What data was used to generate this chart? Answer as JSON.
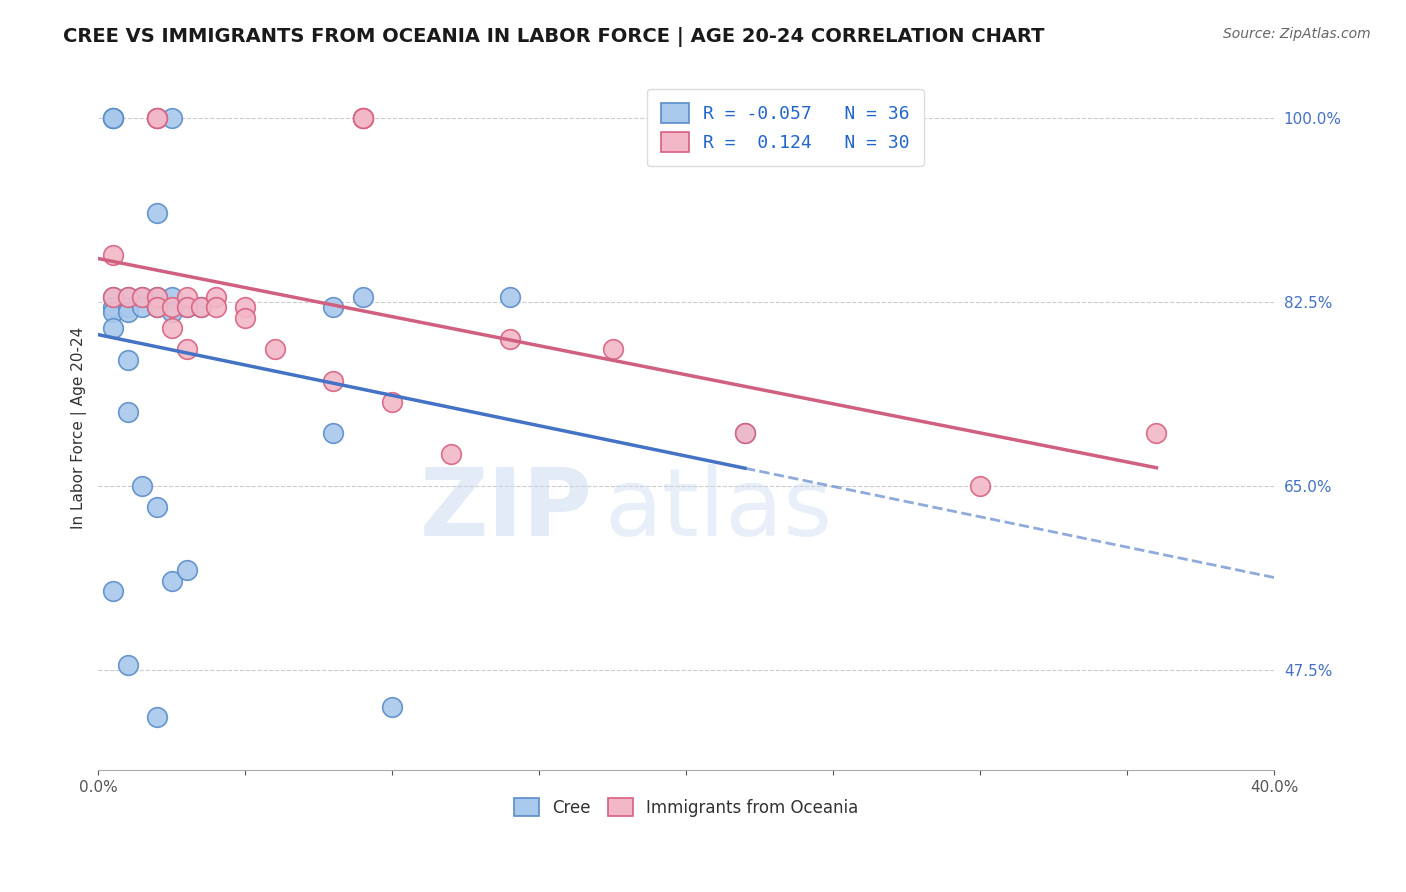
{
  "title": "CREE VS IMMIGRANTS FROM OCEANIA IN LABOR FORCE | AGE 20-24 CORRELATION CHART",
  "source": "Source: ZipAtlas.com",
  "ylabel": "In Labor Force | Age 20-24",
  "xlim": [
    0.0,
    0.4
  ],
  "ylim": [
    0.38,
    1.03
  ],
  "xticks": [
    0.0,
    0.05,
    0.1,
    0.15,
    0.2,
    0.25,
    0.3,
    0.35,
    0.4
  ],
  "xtick_labels": [
    "0.0%",
    "",
    "",
    "",
    "",
    "",
    "",
    "",
    "40.0%"
  ],
  "ytick_labels": [
    "100.0%",
    "82.5%",
    "65.0%",
    "47.5%"
  ],
  "ytick_vals": [
    1.0,
    0.825,
    0.65,
    0.475
  ],
  "watermark_top": "ZIP",
  "watermark_bot": "atlas",
  "legend_line1": "R = -0.057   N = 36",
  "legend_line2": "R =  0.124   N = 30",
  "blue_color": "#A8C8EC",
  "pink_color": "#F2B8C8",
  "blue_edge": "#5B8DC8",
  "pink_edge": "#D86080",
  "blue_line": "#4472C4",
  "pink_line": "#D06080",
  "blue_x": [
    0.005,
    0.005,
    0.005,
    0.005,
    0.005,
    0.005,
    0.01,
    0.01,
    0.01,
    0.01,
    0.015,
    0.015,
    0.02,
    0.02,
    0.02,
    0.02,
    0.025,
    0.025,
    0.025,
    0.03,
    0.035,
    0.08,
    0.08,
    0.09,
    0.1,
    0.14,
    0.22,
    0.01,
    0.02,
    0.03,
    0.005,
    0.005,
    0.02,
    0.025,
    0.01,
    0.015
  ],
  "blue_y": [
    0.83,
    0.82,
    0.815,
    0.8,
    0.55,
    1.0,
    0.83,
    0.82,
    0.815,
    0.77,
    0.83,
    0.82,
    0.91,
    0.83,
    0.82,
    0.63,
    0.83,
    0.815,
    0.56,
    0.82,
    0.82,
    0.82,
    0.7,
    0.83,
    0.44,
    0.83,
    0.7,
    0.48,
    0.43,
    0.57,
    1.0,
    1.0,
    1.0,
    1.0,
    0.72,
    0.65
  ],
  "pink_x": [
    0.005,
    0.005,
    0.01,
    0.015,
    0.02,
    0.02,
    0.025,
    0.025,
    0.03,
    0.03,
    0.03,
    0.035,
    0.04,
    0.04,
    0.05,
    0.05,
    0.06,
    0.08,
    0.09,
    0.09,
    0.09,
    0.1,
    0.12,
    0.14,
    0.175,
    0.22,
    0.3,
    0.36,
    0.02,
    0.02
  ],
  "pink_y": [
    0.87,
    0.83,
    0.83,
    0.83,
    0.83,
    0.82,
    0.82,
    0.8,
    0.83,
    0.82,
    0.78,
    0.82,
    0.83,
    0.82,
    0.82,
    0.81,
    0.78,
    0.75,
    1.0,
    1.0,
    1.0,
    0.73,
    0.68,
    0.79,
    0.78,
    0.7,
    0.65,
    0.7,
    1.0,
    1.0
  ],
  "background_color": "#FFFFFF",
  "title_fontsize": 14,
  "axis_label_fontsize": 11,
  "tick_fontsize": 11
}
